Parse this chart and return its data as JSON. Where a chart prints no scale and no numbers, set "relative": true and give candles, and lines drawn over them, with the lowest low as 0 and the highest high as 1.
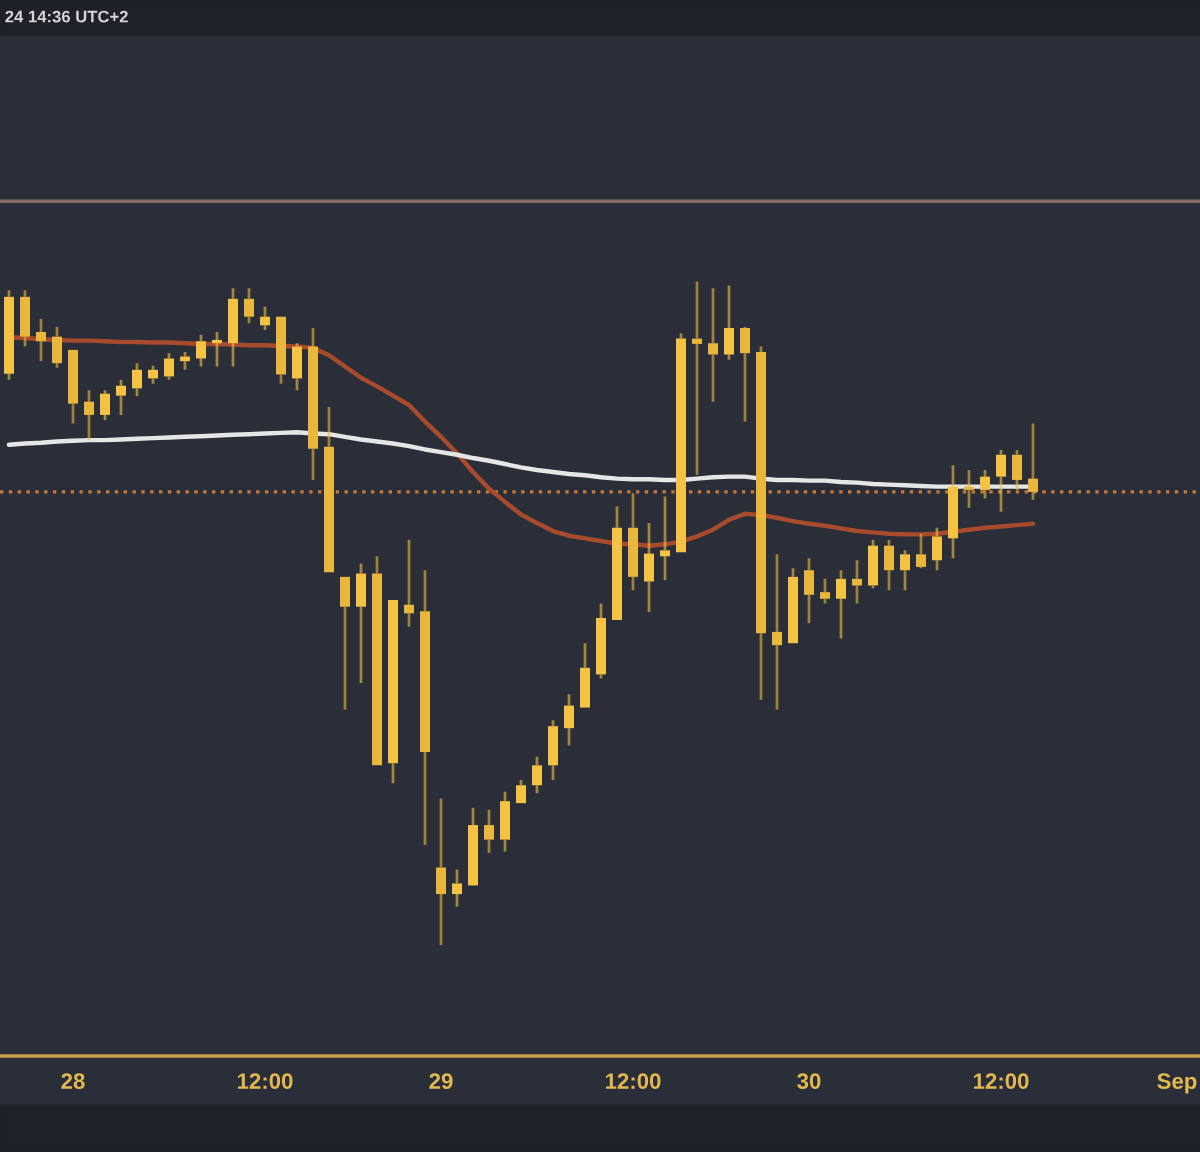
{
  "chart_data": {
    "type": "candlestick",
    "relative": true,
    "tick_labels": "x",
    "categories": [
      null,
      null,
      null,
      null,
      "28",
      null,
      null,
      null,
      null,
      null,
      null,
      null,
      null,
      null,
      null,
      null,
      "12:00",
      null,
      null,
      null,
      null,
      null,
      null,
      null,
      null,
      null,
      null,
      "29",
      null,
      null,
      null,
      null,
      null,
      null,
      null,
      null,
      null,
      null,
      null,
      "12:00",
      null,
      null,
      null,
      null,
      null,
      null,
      null,
      null,
      null,
      null,
      "30",
      null,
      null,
      null,
      null,
      null,
      null,
      null,
      null,
      null,
      null,
      null,
      "12:00",
      null,
      null,
      null,
      null,
      null,
      null,
      null,
      null,
      null,
      null,
      "Sep"
    ],
    "series": [
      {
        "type": "line",
        "color": "#a84a2c",
        "values": [
          0.916,
          0.915,
          0.913,
          0.912,
          0.911,
          0.911,
          0.91,
          0.909,
          0.909,
          0.908,
          0.908,
          0.907,
          0.906,
          0.906,
          0.905,
          0.904,
          0.904,
          0.903,
          0.902,
          0.9,
          0.889,
          0.872,
          0.855,
          0.842,
          0.828,
          0.814,
          0.789,
          0.766,
          0.741,
          0.713,
          0.688,
          0.668,
          0.649,
          0.636,
          0.624,
          0.617,
          0.613,
          0.609,
          0.605,
          0.604,
          0.602,
          0.604,
          0.608,
          0.616,
          0.626,
          0.641,
          0.65,
          0.648,
          0.644,
          0.639,
          0.635,
          0.632,
          0.628,
          0.624,
          0.622,
          0.62,
          0.619,
          0.619,
          0.62,
          0.623,
          0.626,
          0.629,
          0.631,
          0.633,
          0.635,
          null,
          null,
          null,
          null,
          null,
          null,
          null,
          null,
          null
        ]
      },
      {
        "type": "line",
        "color": "#e6e6e6",
        "values": [
          0.754,
          0.756,
          0.757,
          0.759,
          0.76,
          0.761,
          0.761,
          0.762,
          0.763,
          0.764,
          0.765,
          0.766,
          0.767,
          0.768,
          0.769,
          0.77,
          0.771,
          0.772,
          0.773,
          0.771,
          0.77,
          0.766,
          0.762,
          0.759,
          0.756,
          0.752,
          0.747,
          0.743,
          0.739,
          0.734,
          0.73,
          0.725,
          0.72,
          0.716,
          0.713,
          0.71,
          0.708,
          0.705,
          0.703,
          0.702,
          0.702,
          0.701,
          0.701,
          0.703,
          0.705,
          0.706,
          0.706,
          0.703,
          0.701,
          0.701,
          0.7,
          0.7,
          0.698,
          0.697,
          0.695,
          0.694,
          0.693,
          0.692,
          0.691,
          0.691,
          0.691,
          0.691,
          0.691,
          0.691,
          0.691,
          null,
          null,
          null,
          null,
          null,
          null,
          null,
          null,
          null
        ]
      },
      {
        "colors": [
          "#f4c244",
          "#e9b73d",
          "#e9b73d",
          "#e9b73d",
          "#e9b73d",
          "#e9b73d",
          "#f4c244",
          "#f4c244",
          "#f4c244",
          "#f4c244",
          "#f4c244",
          "#f4c244",
          "#f4c244",
          "#f4c244",
          "#f4c244",
          "#e9b73d",
          "#f4c244",
          "#e9b73d",
          "#f4c244",
          "#e9b73d",
          "#e9b73d",
          "#e9b73d",
          "#f4c244",
          "#e9b73d",
          "#f4c244",
          "#e9b73d",
          "#e9b73d",
          "#e9b73d",
          "#f4c244",
          "#f4c244",
          "#e9b73d",
          "#f4c244",
          "#f4c244",
          "#f4c244",
          "#f4c244",
          "#f4c244",
          "#f4c244",
          "#f4c244",
          "#f4c244",
          "#e9b73d",
          "#f4c244",
          "#f4c244",
          "#f4c244",
          "#e9b73d",
          "#e9b73d",
          "#f4c244",
          "#e9b73d",
          "#e9b73d",
          "#e9b73d",
          "#f4c244",
          "#e9b73d",
          "#e9b73d",
          "#f4c244",
          "#e9b73d",
          "#f4c244",
          "#e9b73d",
          "#f4c244",
          "#e9b73d",
          "#f4c244",
          "#f4c244",
          "#e9b73d",
          "#f4c244",
          "#f4c244",
          "#e9b73d",
          "#e9b73d",
          null,
          null,
          null,
          null,
          null,
          null,
          null,
          null,
          null
        ],
        "ohlc": [
          [
            0.861,
            0.987,
            0.852,
            0.977
          ],
          [
            0.977,
            0.987,
            0.902,
            0.917
          ],
          [
            0.924,
            0.944,
            0.88,
            0.91
          ],
          [
            0.917,
            0.932,
            0.87,
            0.877
          ],
          [
            0.897,
            0.897,
            0.786,
            0.816
          ],
          [
            0.819,
            0.836,
            0.761,
            0.799
          ],
          [
            0.799,
            0.836,
            0.791,
            0.831
          ],
          [
            0.828,
            0.852,
            0.799,
            0.843
          ],
          [
            0.839,
            0.877,
            0.827,
            0.867
          ],
          [
            0.854,
            0.873,
            0.846,
            0.867
          ],
          [
            0.857,
            0.892,
            0.852,
            0.884
          ],
          [
            0.88,
            0.894,
            0.867,
            0.887
          ],
          [
            0.884,
            0.92,
            0.872,
            0.91
          ],
          [
            0.907,
            0.924,
            0.872,
            0.912
          ],
          [
            0.907,
            0.99,
            0.872,
            0.974
          ],
          [
            0.974,
            0.99,
            0.937,
            0.947
          ],
          [
            0.934,
            0.962,
            0.927,
            0.947
          ],
          [
            0.947,
            0.947,
            0.846,
            0.86
          ],
          [
            0.854,
            0.907,
            0.836,
            0.902
          ],
          [
            0.902,
            0.93,
            0.701,
            0.748
          ],
          [
            0.751,
            0.811,
            0.562,
            0.562
          ],
          [
            0.555,
            0.555,
            0.355,
            0.51
          ],
          [
            0.51,
            0.575,
            0.395,
            0.56
          ],
          [
            0.56,
            0.586,
            0.271,
            0.271
          ],
          [
            0.274,
            0.52,
            0.244,
            0.52
          ],
          [
            0.513,
            0.611,
            0.48,
            0.5
          ],
          [
            0.503,
            0.565,
            0.151,
            0.291
          ],
          [
            0.117,
            0.221,
            0.0,
            0.077
          ],
          [
            0.077,
            0.114,
            0.058,
            0.093
          ],
          [
            0.09,
            0.207,
            0.09,
            0.181
          ],
          [
            0.181,
            0.204,
            0.139,
            0.159
          ],
          [
            0.159,
            0.231,
            0.141,
            0.217
          ],
          [
            0.214,
            0.249,
            0.214,
            0.241
          ],
          [
            0.241,
            0.284,
            0.229,
            0.271
          ],
          [
            0.271,
            0.339,
            0.249,
            0.33
          ],
          [
            0.327,
            0.378,
            0.301,
            0.361
          ],
          [
            0.358,
            0.455,
            0.358,
            0.418
          ],
          [
            0.408,
            0.515,
            0.402,
            0.493
          ],
          [
            0.49,
            0.661,
            0.49,
            0.629
          ],
          [
            0.629,
            0.681,
            0.535,
            0.555
          ],
          [
            0.548,
            0.636,
            0.502,
            0.59
          ],
          [
            0.586,
            0.676,
            0.55,
            0.595
          ],
          [
            0.592,
            0.922,
            0.592,
            0.914
          ],
          [
            0.914,
            1.0,
            0.709,
            0.906
          ],
          [
            0.907,
            0.99,
            0.819,
            0.89
          ],
          [
            0.89,
            0.994,
            0.882,
            0.93
          ],
          [
            0.93,
            0.932,
            0.789,
            0.892
          ],
          [
            0.894,
            0.902,
            0.37,
            0.47
          ],
          [
            0.472,
            0.589,
            0.355,
            0.452
          ],
          [
            0.455,
            0.568,
            0.455,
            0.555
          ],
          [
            0.565,
            0.583,
            0.485,
            0.528
          ],
          [
            0.532,
            0.552,
            0.515,
            0.522
          ],
          [
            0.522,
            0.565,
            0.462,
            0.552
          ],
          [
            0.552,
            0.58,
            0.515,
            0.542
          ],
          [
            0.542,
            0.611,
            0.538,
            0.602
          ],
          [
            0.602,
            0.611,
            0.535,
            0.565
          ],
          [
            0.565,
            0.595,
            0.535,
            0.589
          ],
          [
            0.589,
            0.62,
            0.568,
            0.57
          ],
          [
            0.58,
            0.629,
            0.565,
            0.616
          ],
          [
            0.613,
            0.723,
            0.583,
            0.691
          ],
          [
            0.691,
            0.716,
            0.659,
            0.686
          ],
          [
            0.686,
            0.716,
            0.673,
            0.706
          ],
          [
            0.706,
            0.746,
            0.653,
            0.739
          ],
          [
            0.739,
            0.746,
            0.686,
            0.701
          ],
          [
            0.703,
            0.786,
            0.671,
            0.683
          ],
          null,
          null,
          null,
          null,
          null,
          null,
          null,
          null,
          null
        ]
      }
    ],
    "ref_lines": [
      {
        "axis": "y",
        "value": 1.121,
        "color": "#8a6c66"
      },
      {
        "axis": "y",
        "value": 0.683,
        "color": "#c27a3c",
        "line_style": "dotted"
      }
    ],
    "annotations": [
      "24 14:36 UTC+2"
    ]
  }
}
